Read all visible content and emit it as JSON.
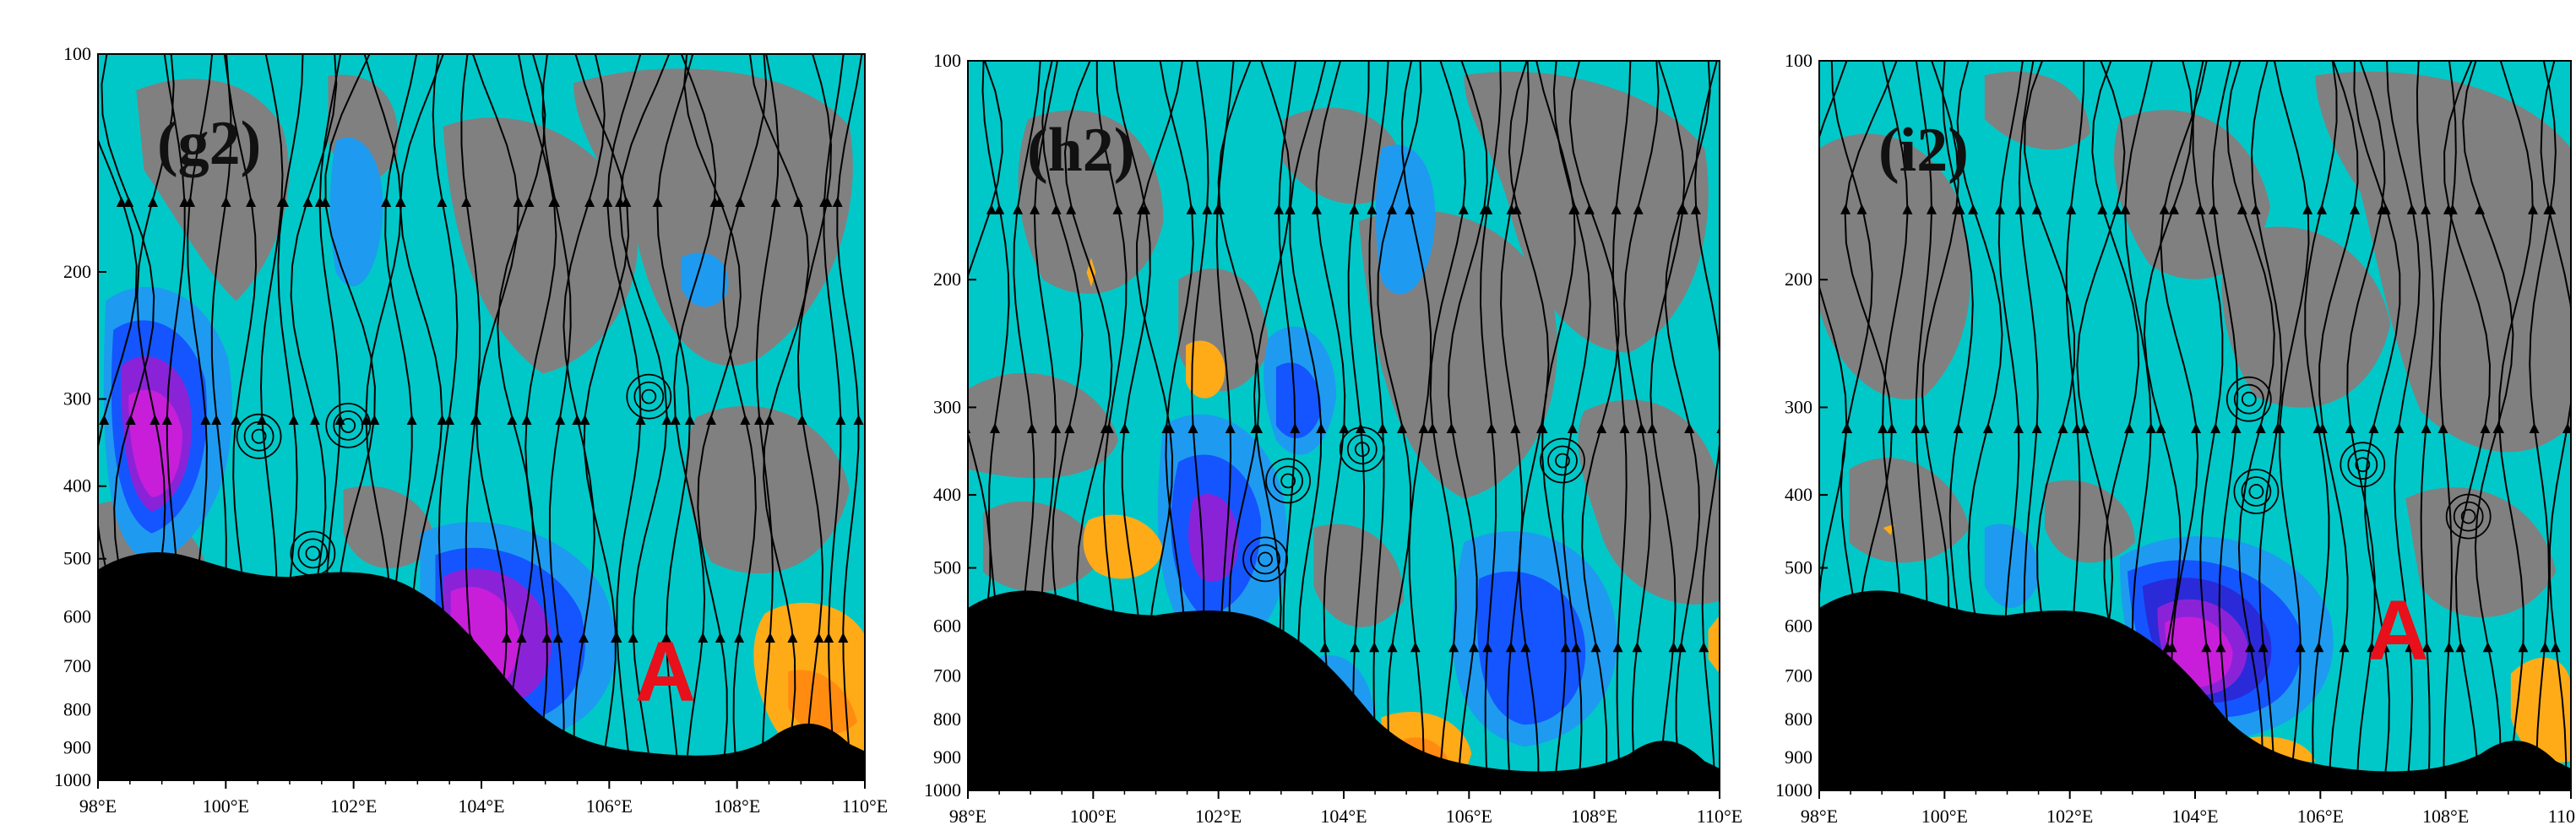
{
  "figure": {
    "panels": [
      {
        "tag": "(g2)",
        "marker": "A",
        "has_marker": true
      },
      {
        "tag": "(h2)",
        "marker": "",
        "has_marker": false
      },
      {
        "tag": "(i2)",
        "marker": "A",
        "has_marker": true
      }
    ],
    "y_ticks": [
      "100",
      "200",
      "300",
      "400",
      "500",
      "600",
      "700",
      "800",
      "900",
      "1000"
    ],
    "x_ticks": [
      "98°E",
      "100°E",
      "102°E",
      "104°E",
      "106°E",
      "108°E",
      "110°E"
    ],
    "colors": {
      "cyan": "#00c8c8",
      "gray": "#808080",
      "light_blue": "#1e9bf0",
      "blue": "#1455ff",
      "dark_blue": "#2a2ad8",
      "violet": "#8a23d8",
      "magenta": "#c81eda",
      "orange": "#ffab18",
      "orange_dark": "#ff8c10",
      "terrain": "#000000",
      "marker_red": "#e8101a"
    }
  }
}
